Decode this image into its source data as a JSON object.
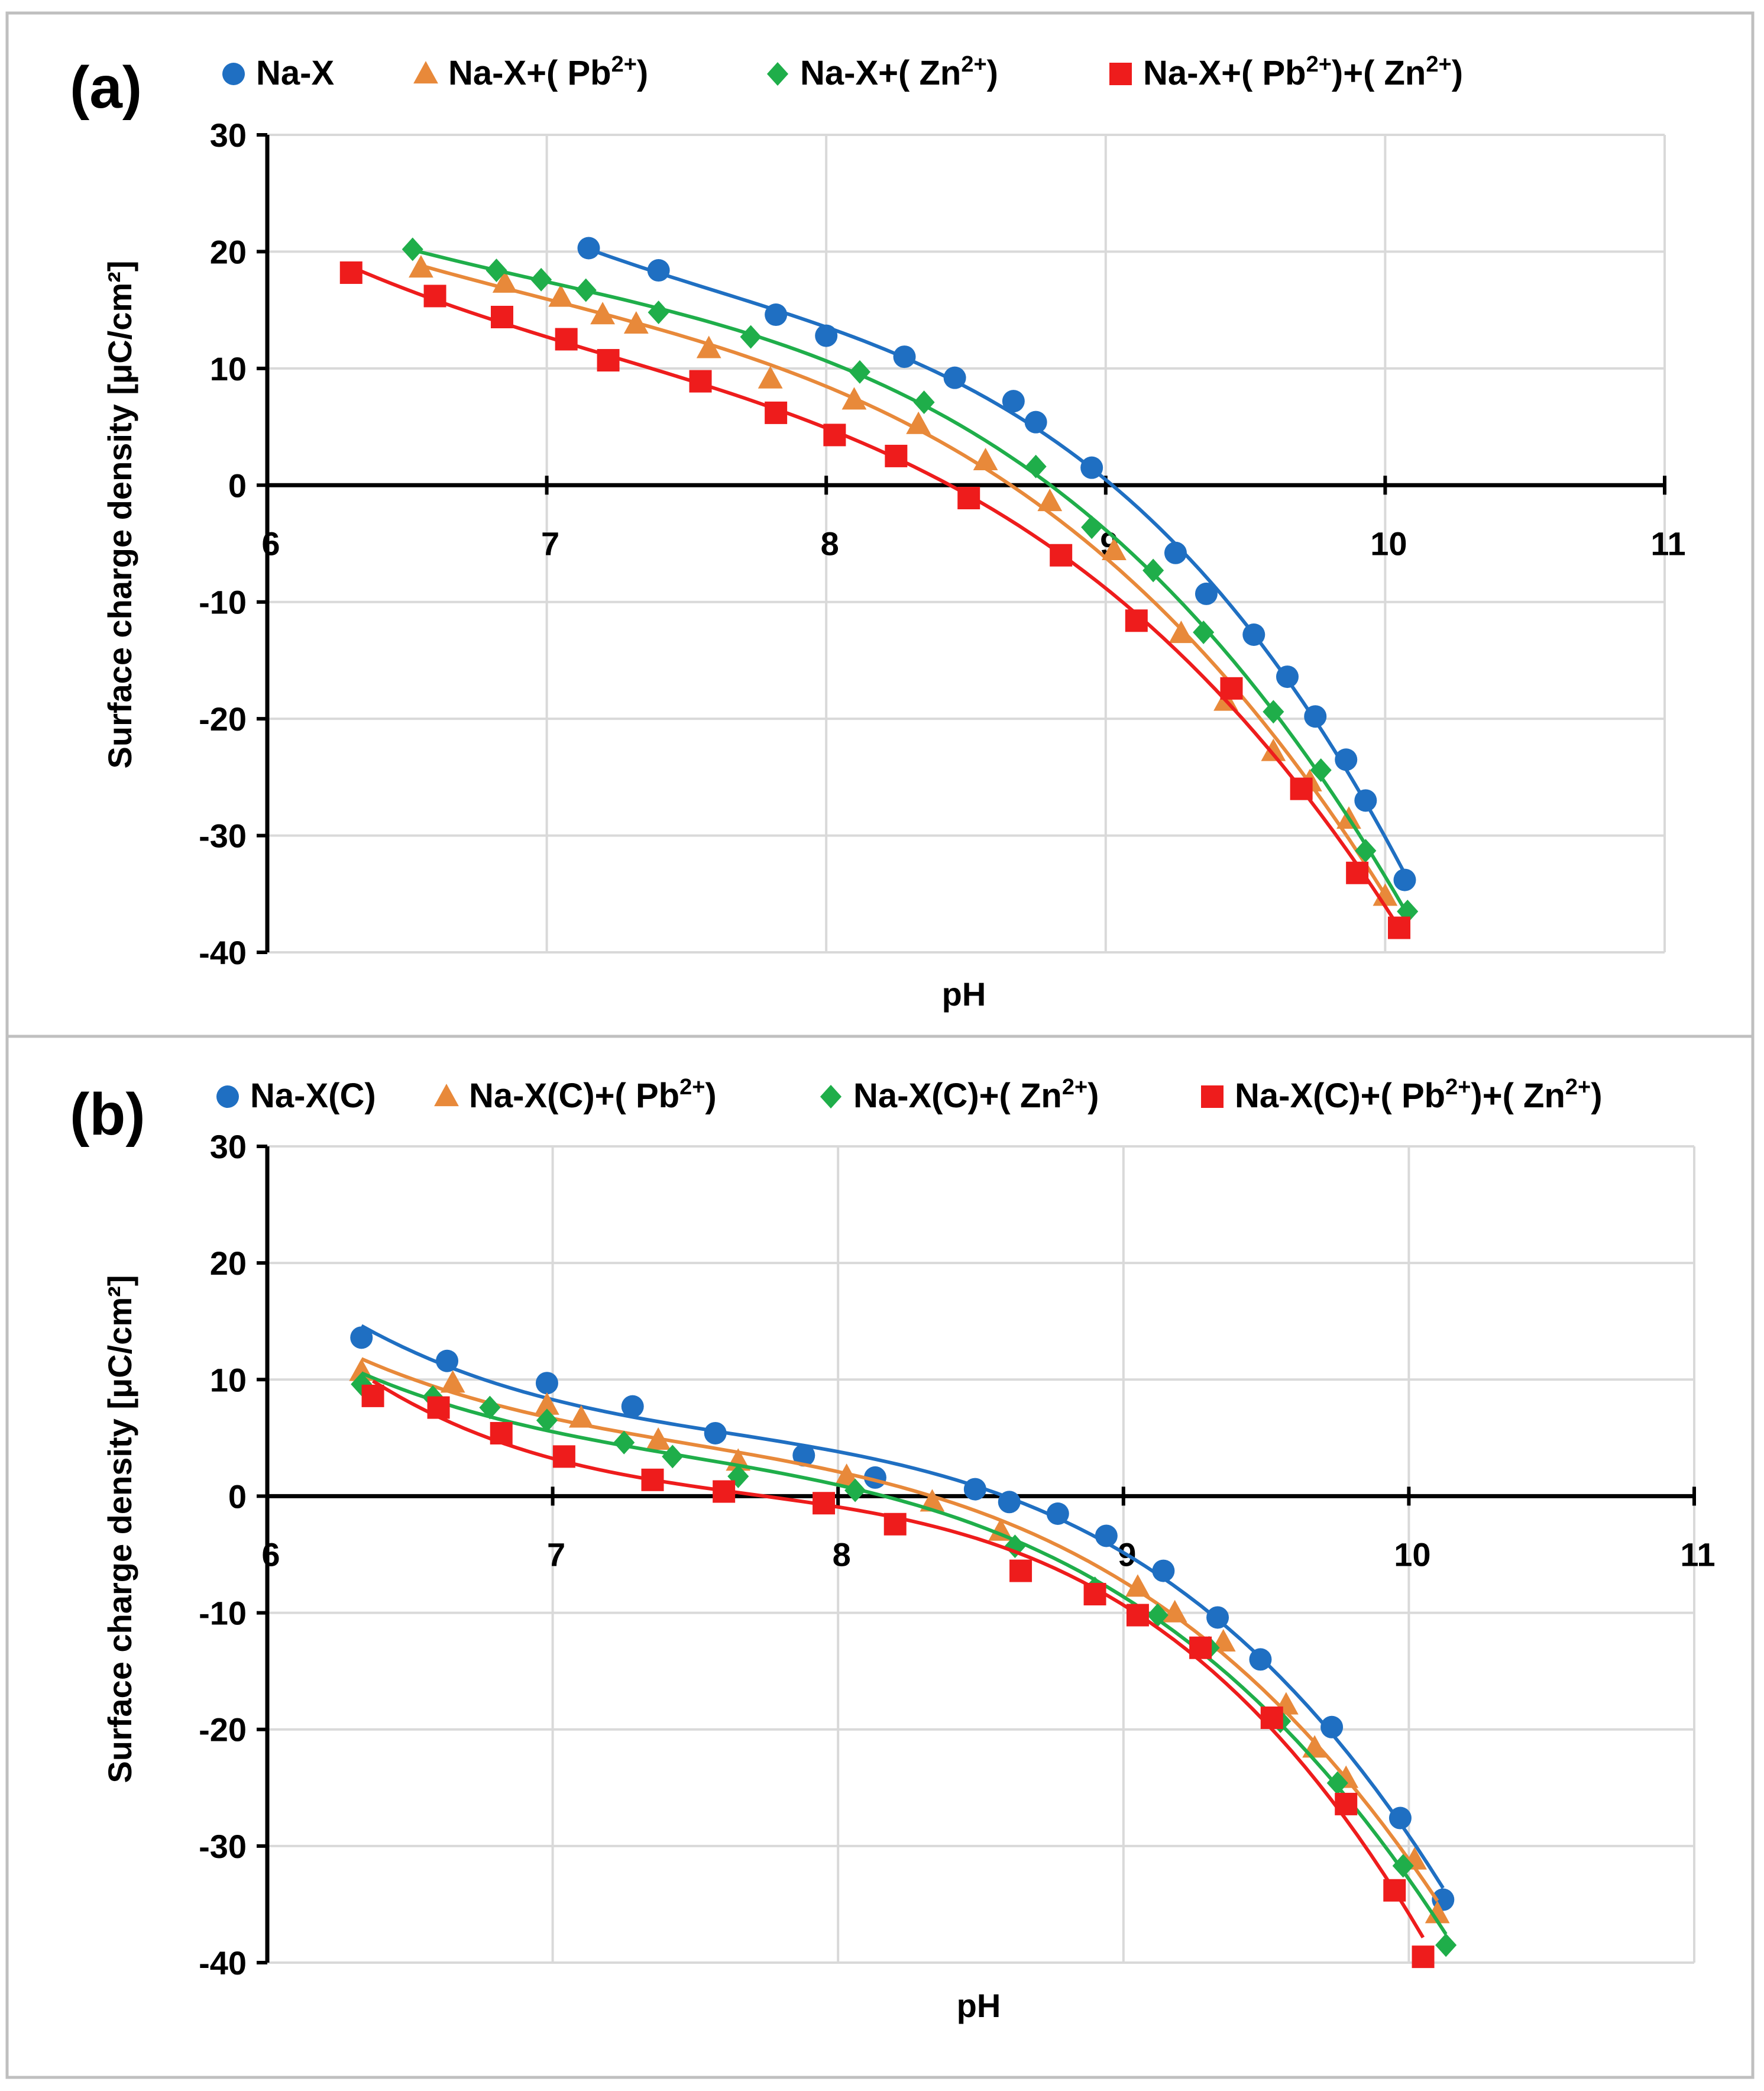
{
  "colors": {
    "series": [
      "#1f6fc2",
      "#e8893a",
      "#1fae4a",
      "#ee1c1c"
    ],
    "grid": "#d9d9d9",
    "axis": "#000000",
    "frame": "#bfbfbf"
  },
  "chart_data": [
    {
      "panel_label": "(a)",
      "type": "scatter",
      "xlabel": "pH",
      "ylabel": "Surface charge density [μC/cm²]",
      "xlim": [
        6,
        11
      ],
      "ylim": [
        -40,
        30
      ],
      "xticks": [
        "6",
        "7",
        "8",
        "9",
        "10",
        "11"
      ],
      "yticks": [
        "30",
        "20",
        "10",
        "0",
        "-10",
        "-20",
        "-30",
        "-40"
      ],
      "grid": true,
      "legend_position": "top",
      "series": [
        {
          "name": "Na-X",
          "name_base": "Na-X",
          "marker": "circle",
          "x": [
            7.15,
            7.4,
            7.82,
            8.0,
            8.28,
            8.46,
            8.67,
            8.75,
            8.95,
            9.25,
            9.36,
            9.53,
            9.65,
            9.75,
            9.86,
            9.93,
            10.07
          ],
          "y": [
            20.3,
            18.4,
            14.6,
            12.8,
            11.0,
            9.2,
            7.2,
            5.4,
            1.5,
            -5.8,
            -9.3,
            -12.8,
            -16.4,
            -19.8,
            -23.5,
            -27.0,
            -33.8
          ]
        },
        {
          "name": "Na-X+( Pb2+)",
          "name_base": "Na-X+( Pb",
          "name_sup": "2+",
          "name_tail": ")",
          "marker": "triangle",
          "x": [
            6.55,
            6.85,
            7.05,
            7.2,
            7.32,
            7.58,
            7.8,
            8.1,
            8.33,
            8.57,
            8.8,
            9.03,
            9.27,
            9.43,
            9.6,
            9.73,
            9.87,
            10.0
          ],
          "y": [
            18.6,
            17.3,
            16.1,
            14.6,
            13.8,
            11.7,
            9.1,
            7.3,
            5.2,
            2.1,
            -1.4,
            -5.6,
            -12.7,
            -18.5,
            -22.8,
            -25.4,
            -28.6,
            -35.2
          ]
        },
        {
          "name": "Na-X+( Zn2+)",
          "name_base": "Na-X+( Zn",
          "name_sup": "2+",
          "name_tail": ")",
          "marker": "diamond",
          "x": [
            6.52,
            6.82,
            6.98,
            7.14,
            7.4,
            7.73,
            8.12,
            8.35,
            8.75,
            8.95,
            9.17,
            9.35,
            9.6,
            9.77,
            9.93,
            10.08
          ],
          "y": [
            20.2,
            18.4,
            17.6,
            16.7,
            14.8,
            12.7,
            9.7,
            7.1,
            1.6,
            -3.6,
            -7.3,
            -12.6,
            -19.4,
            -24.4,
            -31.3,
            -36.5
          ]
        },
        {
          "name": "Na-X+( Pb2+)+( Zn2+)",
          "name_base": "Na-X+( Pb",
          "name_sup": "2+",
          "name_tail": ")+( Zn",
          "name_sup2": "2+",
          "name_tail2": ")",
          "marker": "square",
          "x": [
            6.3,
            6.6,
            6.84,
            7.07,
            7.22,
            7.55,
            7.82,
            8.03,
            8.25,
            8.51,
            8.84,
            9.11,
            9.45,
            9.7,
            9.9,
            10.05
          ],
          "y": [
            18.2,
            16.2,
            14.4,
            12.5,
            10.7,
            8.9,
            6.2,
            4.3,
            2.5,
            -1.1,
            -6.0,
            -11.6,
            -17.4,
            -26.0,
            -33.2,
            -37.9
          ]
        }
      ]
    },
    {
      "panel_label": "(b)",
      "type": "scatter",
      "xlabel": "pH",
      "ylabel": "Surface charge density [μC/cm²]",
      "xlim": [
        6,
        11
      ],
      "ylim": [
        -40,
        30
      ],
      "xticks": [
        "6",
        "7",
        "8",
        "9",
        "10",
        "11"
      ],
      "yticks": [
        "30",
        "20",
        "10",
        "0",
        "-10",
        "-20",
        "-30",
        "-40"
      ],
      "grid": true,
      "legend_position": "top",
      "series": [
        {
          "name": "Na-X(C)",
          "name_base": "Na-X(C)",
          "marker": "circle",
          "x": [
            6.33,
            6.63,
            6.98,
            7.28,
            7.57,
            7.88,
            8.13,
            8.48,
            8.6,
            8.77,
            8.94,
            9.14,
            9.33,
            9.48,
            9.73,
            9.97,
            10.12
          ],
          "y": [
            13.6,
            11.6,
            9.7,
            7.7,
            5.4,
            3.5,
            1.6,
            0.6,
            -0.5,
            -1.5,
            -3.4,
            -6.4,
            -10.4,
            -14.0,
            -19.8,
            -27.6,
            -34.6
          ]
        },
        {
          "name": "Na-X(C)+( Pb2+)",
          "name_base": "Na-X(C)+( Pb",
          "name_sup": "2+",
          "name_tail": ")",
          "marker": "triangle",
          "x": [
            6.33,
            6.65,
            6.98,
            7.1,
            7.37,
            7.65,
            8.03,
            8.33,
            8.57,
            9.05,
            9.18,
            9.35,
            9.57,
            9.67,
            9.78,
            10.02,
            10.1
          ],
          "y": [
            10.7,
            9.7,
            7.8,
            6.7,
            4.8,
            3.0,
            1.7,
            -0.5,
            -3.0,
            -7.8,
            -10.0,
            -12.5,
            -17.9,
            -21.6,
            -24.2,
            -31.2,
            -35.8
          ]
        },
        {
          "name": "Na-X(C)+( Zn2+)",
          "name_base": "Na-X(C)+( Zn",
          "name_sup": "2+",
          "name_tail": ")",
          "marker": "diamond",
          "x": [
            6.33,
            6.58,
            6.78,
            6.98,
            7.25,
            7.42,
            7.65,
            8.06,
            8.62,
            8.9,
            9.12,
            9.3,
            9.55,
            9.75,
            9.98,
            10.13
          ],
          "y": [
            9.6,
            8.5,
            7.6,
            6.5,
            4.6,
            3.4,
            1.7,
            0.5,
            -4.3,
            -7.9,
            -10.2,
            -13.0,
            -19.3,
            -24.6,
            -31.7,
            -38.5
          ]
        },
        {
          "name": "Na-X(C)+( Pb2+)+( Zn2+)",
          "name_base": "Na-X(C)+( Pb",
          "name_sup": "2+",
          "name_tail": ")+( Zn",
          "name_sup2": "2+",
          "name_tail2": ")",
          "marker": "square",
          "x": [
            6.37,
            6.6,
            6.82,
            7.04,
            7.35,
            7.6,
            7.95,
            8.2,
            8.64,
            8.9,
            9.05,
            9.27,
            9.52,
            9.78,
            9.95,
            10.05
          ],
          "y": [
            8.6,
            7.6,
            5.4,
            3.4,
            1.4,
            0.4,
            -0.6,
            -2.4,
            -6.4,
            -8.4,
            -10.2,
            -13.0,
            -19.0,
            -26.4,
            -33.8,
            -39.5
          ]
        }
      ]
    }
  ]
}
